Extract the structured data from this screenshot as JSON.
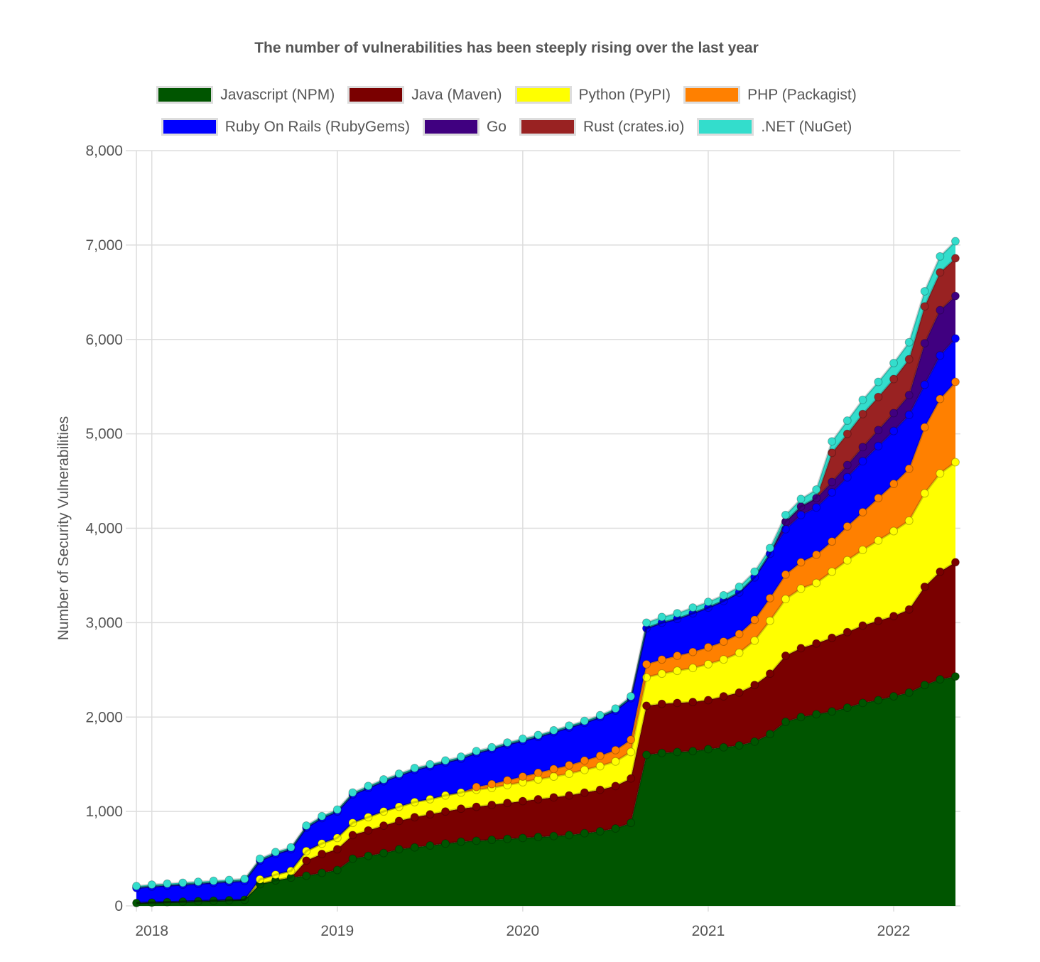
{
  "chart_data": {
    "type": "area",
    "stacked": true,
    "title": "The number of vulnerabilities has been steeply rising over the last year",
    "xlabel": "",
    "ylabel": "Number of Security Vulnerabilities",
    "ylim": [
      0,
      8000
    ],
    "yticks": [
      "0",
      "1,000",
      "2,000",
      "3,000",
      "4,000",
      "5,000",
      "6,000",
      "7,000",
      "8,000"
    ],
    "xticks": [
      "2018",
      "2019",
      "2020",
      "2021",
      "2022"
    ],
    "xtick_values": [
      2018.0,
      2019.0,
      2020.0,
      2021.0,
      2022.0
    ],
    "xlim": [
      2017.89,
      2022.36
    ],
    "grid": true,
    "legend_position": "top",
    "x": [
      2017.917,
      2018.0,
      2018.083,
      2018.167,
      2018.25,
      2018.333,
      2018.417,
      2018.5,
      2018.583,
      2018.667,
      2018.75,
      2018.833,
      2018.917,
      2019.0,
      2019.083,
      2019.167,
      2019.25,
      2019.333,
      2019.417,
      2019.5,
      2019.583,
      2019.667,
      2019.75,
      2019.833,
      2019.917,
      2020.0,
      2020.083,
      2020.167,
      2020.25,
      2020.333,
      2020.417,
      2020.5,
      2020.583,
      2020.667,
      2020.75,
      2020.833,
      2020.917,
      2021.0,
      2021.083,
      2021.167,
      2021.25,
      2021.333,
      2021.417,
      2021.5,
      2021.583,
      2021.667,
      2021.75,
      2021.833,
      2021.917,
      2022.0,
      2022.083,
      2022.167,
      2022.25,
      2022.333
    ],
    "series": [
      {
        "name": "Javascript (NPM)",
        "color": "#005500",
        "values": [
          30,
          35,
          40,
          45,
          50,
          55,
          60,
          65,
          230,
          270,
          300,
          320,
          350,
          380,
          500,
          530,
          560,
          600,
          620,
          640,
          660,
          680,
          690,
          700,
          710,
          720,
          730,
          740,
          750,
          770,
          790,
          820,
          880,
          1600,
          1620,
          1630,
          1640,
          1660,
          1680,
          1700,
          1740,
          1820,
          1950,
          2000,
          2030,
          2060,
          2100,
          2150,
          2180,
          2220,
          2260,
          2340,
          2400,
          2430
        ]
      },
      {
        "name": "Java (Maven)",
        "color": "#7a0000",
        "values": [
          0,
          0,
          0,
          0,
          0,
          0,
          0,
          0,
          0,
          0,
          0,
          160,
          200,
          220,
          250,
          270,
          290,
          300,
          320,
          330,
          340,
          350,
          360,
          370,
          380,
          390,
          400,
          410,
          420,
          430,
          440,
          450,
          470,
          520,
          520,
          520,
          520,
          520,
          540,
          560,
          600,
          640,
          700,
          730,
          750,
          780,
          800,
          820,
          840,
          850,
          880,
          1040,
          1140,
          1210
        ]
      },
      {
        "name": "Python (PyPI)",
        "color": "#ffff00",
        "values": [
          0,
          0,
          0,
          0,
          0,
          0,
          0,
          0,
          50,
          60,
          70,
          100,
          110,
          120,
          130,
          140,
          150,
          150,
          160,
          160,
          170,
          170,
          180,
          180,
          190,
          200,
          210,
          220,
          230,
          240,
          250,
          260,
          280,
          300,
          320,
          340,
          360,
          380,
          390,
          420,
          470,
          560,
          600,
          630,
          640,
          700,
          760,
          800,
          850,
          900,
          940,
          990,
          1040,
          1060
        ]
      },
      {
        "name": "PHP (Packagist)",
        "color": "#ff8000",
        "values": [
          0,
          0,
          0,
          0,
          0,
          0,
          0,
          0,
          0,
          0,
          0,
          0,
          0,
          0,
          0,
          0,
          0,
          0,
          0,
          0,
          0,
          0,
          30,
          40,
          50,
          60,
          70,
          80,
          90,
          100,
          110,
          120,
          130,
          140,
          150,
          160,
          170,
          180,
          190,
          200,
          220,
          240,
          260,
          280,
          300,
          320,
          360,
          400,
          450,
          500,
          550,
          700,
          790,
          850
        ]
      },
      {
        "name": "Ruby On Rails (RubyGems)",
        "color": "#0000ff",
        "values": [
          160,
          170,
          175,
          180,
          185,
          190,
          195,
          200,
          200,
          220,
          230,
          250,
          270,
          280,
          300,
          310,
          320,
          330,
          340,
          350,
          350,
          360,
          360,
          370,
          380,
          380,
          380,
          390,
          400,
          400,
          410,
          420,
          440,
          380,
          390,
          390,
          410,
          420,
          430,
          440,
          450,
          470,
          480,
          500,
          500,
          520,
          520,
          540,
          550,
          560,
          570,
          450,
          460,
          460
        ]
      },
      {
        "name": "Go",
        "color": "#400080",
        "values": [
          0,
          0,
          0,
          0,
          0,
          0,
          0,
          0,
          0,
          0,
          0,
          0,
          0,
          0,
          0,
          0,
          0,
          0,
          0,
          0,
          0,
          0,
          0,
          0,
          0,
          0,
          0,
          0,
          0,
          0,
          0,
          0,
          0,
          0,
          0,
          0,
          0,
          0,
          0,
          0,
          0,
          0,
          0,
          0,
          0,
          0,
          0,
          0,
          0,
          0,
          0,
          0,
          0,
          0
        ]
      },
      {
        "name": "Rust (crates.io)",
        "color": "#992222",
        "values": [
          0,
          0,
          0,
          0,
          0,
          0,
          0,
          0,
          0,
          0,
          0,
          0,
          0,
          0,
          0,
          0,
          0,
          0,
          0,
          0,
          0,
          0,
          0,
          0,
          0,
          0,
          0,
          0,
          0,
          0,
          0,
          0,
          0,
          0,
          0,
          0,
          0,
          0,
          0,
          0,
          0,
          0,
          0,
          0,
          0,
          0,
          0,
          0,
          0,
          0,
          0,
          0,
          0,
          0
        ]
      },
      {
        "name": ".NET (NuGet)",
        "color": "#33ddcc",
        "values": [
          20,
          20,
          20,
          20,
          20,
          20,
          20,
          20,
          20,
          20,
          20,
          20,
          20,
          20,
          20,
          20,
          20,
          20,
          20,
          20,
          20,
          20,
          20,
          20,
          20,
          20,
          20,
          20,
          20,
          20,
          20,
          20,
          20,
          60,
          60,
          60,
          60,
          60,
          60,
          60,
          60,
          60,
          70,
          80,
          90,
          120,
          140,
          150,
          160,
          170,
          180,
          160,
          170,
          180
        ]
      }
    ],
    "go_values_late": [
      0,
      0,
      0,
      0,
      0,
      0,
      0,
      0,
      0,
      0,
      0,
      0,
      0,
      0,
      0,
      0,
      0,
      0,
      0,
      0,
      0,
      0,
      0,
      0,
      0,
      0,
      0,
      0,
      0,
      0,
      0,
      0,
      0,
      0,
      0,
      0,
      0,
      0,
      0,
      0,
      0,
      0,
      80,
      90,
      100,
      110,
      130,
      150,
      170,
      190,
      210,
      440,
      480,
      450
    ],
    "rust_values_late": [
      0,
      0,
      0,
      0,
      0,
      0,
      0,
      0,
      0,
      0,
      0,
      0,
      0,
      0,
      0,
      0,
      0,
      0,
      0,
      0,
      0,
      0,
      0,
      0,
      0,
      0,
      0,
      0,
      0,
      0,
      0,
      0,
      0,
      0,
      0,
      0,
      0,
      0,
      0,
      0,
      0,
      0,
      0,
      0,
      0,
      310,
      330,
      350,
      350,
      360,
      380,
      390,
      400,
      400
    ]
  }
}
